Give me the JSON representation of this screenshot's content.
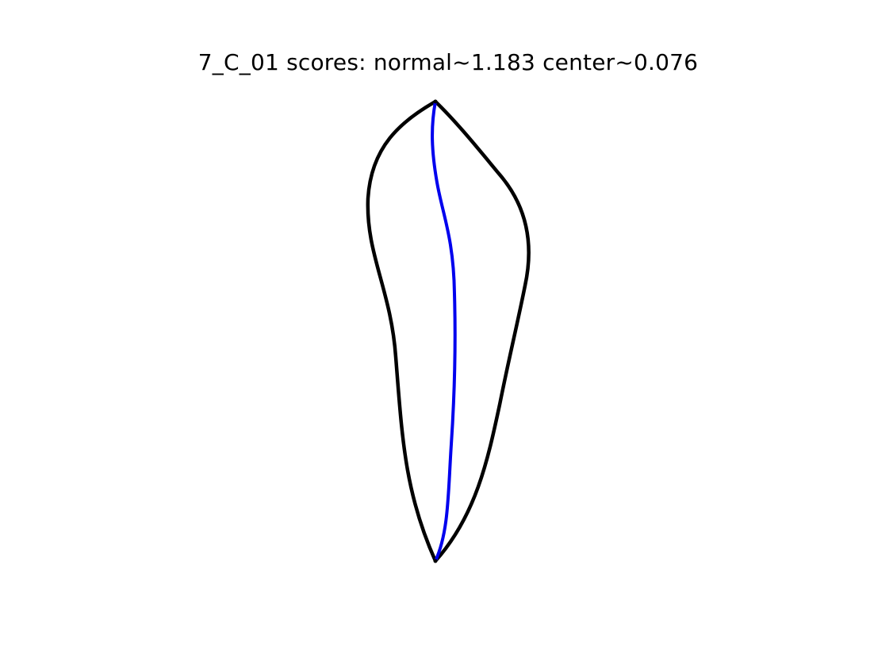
{
  "figure": {
    "title": "7_C_01 scores: normal~1.183 center~0.076"
  },
  "colors": {
    "background": "#ffffff",
    "outline": "#000000",
    "centerline": "#0000ee"
  }
}
